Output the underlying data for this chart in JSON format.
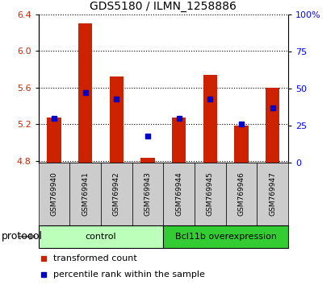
{
  "title": "GDS5180 / ILMN_1258886",
  "samples": [
    "GSM769940",
    "GSM769941",
    "GSM769942",
    "GSM769943",
    "GSM769944",
    "GSM769945",
    "GSM769946",
    "GSM769947"
  ],
  "transformed_counts": [
    5.27,
    6.3,
    5.72,
    4.83,
    5.27,
    5.74,
    5.18,
    5.6
  ],
  "percentile_ranks": [
    30,
    47,
    43,
    18,
    30,
    43,
    26,
    37
  ],
  "ymin": 4.78,
  "ymax": 6.4,
  "yticks": [
    4.8,
    5.2,
    5.6,
    6.0,
    6.4
  ],
  "right_yticks": [
    0,
    25,
    50,
    75,
    100
  ],
  "bar_color": "#cc2200",
  "dot_color": "#0000cc",
  "bar_bottom": 4.78,
  "groups": [
    {
      "label": "control",
      "start": 0,
      "end": 4,
      "color": "#bbffbb"
    },
    {
      "label": "Bcl11b overexpression",
      "start": 4,
      "end": 8,
      "color": "#33cc33"
    }
  ],
  "protocol_label": "protocol",
  "legend_items": [
    {
      "label": "transformed count",
      "color": "#cc2200"
    },
    {
      "label": "percentile rank within the sample",
      "color": "#0000cc"
    }
  ],
  "sample_box_color": "#cccccc",
  "title_fontsize": 10
}
